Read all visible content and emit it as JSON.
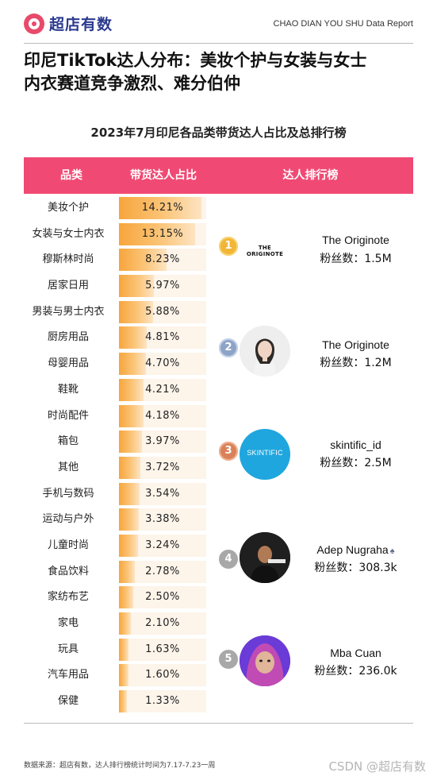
{
  "header": {
    "logo_text": "超店有数",
    "report_tag": "CHAO DIAN YOU SHU Data Report"
  },
  "title": {
    "line1": "印尼TikTok达人分布：美妆个护与女装与女士",
    "line2": "内衣赛道竞争激烈、难分伯仲"
  },
  "chart_title": "2023年7月印尼各品类带货达人占比及总排行榜",
  "table": {
    "headers": {
      "category": "品类",
      "share": "带货达人占比",
      "ranking": "达人排行榜"
    }
  },
  "chart_data": {
    "type": "bar",
    "title": "2023年7月印尼各品类带货达人占比及总排行榜",
    "categories": [
      "美妆个护",
      "女装与女士内衣",
      "穆斯林时尚",
      "居家日用",
      "男装与男士内衣",
      "厨房用品",
      "母婴用品",
      "鞋靴",
      "时尚配件",
      "箱包",
      "其他",
      "手机与数码",
      "运动与户外",
      "儿童时尚",
      "食品饮料",
      "家纺布艺",
      "家电",
      "玩具",
      "汽车用品",
      "保健"
    ],
    "values": [
      14.21,
      13.15,
      8.23,
      5.97,
      5.88,
      4.81,
      4.7,
      4.21,
      4.18,
      3.97,
      3.72,
      3.54,
      3.38,
      3.24,
      2.78,
      2.5,
      2.1,
      1.63,
      1.6,
      1.33
    ],
    "labels": [
      "14.21%",
      "13.15%",
      "8.23%",
      "5.97%",
      "5.88%",
      "4.81%",
      "4.70%",
      "4.21%",
      "4.18%",
      "3.97%",
      "3.72%",
      "3.54%",
      "3.38%",
      "3.24%",
      "2.78%",
      "2.50%",
      "2.10%",
      "1.63%",
      "1.60%",
      "1.33%"
    ],
    "xlabel": "",
    "ylabel": "",
    "xlim": [
      0,
      15
    ],
    "colors": {
      "bar_start": "#f7a53c",
      "bar_end": "#fde4c3",
      "header": "#f04a74"
    }
  },
  "creators": [
    {
      "rank": "1",
      "medal": "gold",
      "name": "The Originote",
      "fans": "粉丝数：1.5M",
      "avatar_text": "THE ORIGINOTE",
      "avatar": "brand-logo"
    },
    {
      "rank": "2",
      "medal": "silver",
      "name": "The Originote",
      "fans": "粉丝数：1.2M",
      "avatar": "woman-portrait"
    },
    {
      "rank": "3",
      "medal": "bronze",
      "name": "skintific_id",
      "fans": "粉丝数：2.5M",
      "avatar_text": "SKINTIFIC",
      "avatar": "skintific-logo"
    },
    {
      "rank": "4",
      "medal": "grey",
      "name": "Adep Nugraha",
      "name_suffix": "♠",
      "fans": "粉丝数：308.3k",
      "avatar": "man-portrait"
    },
    {
      "rank": "5",
      "medal": "grey",
      "name": "Mba Cuan",
      "fans": "粉丝数：236.0k",
      "avatar": "woman-hijab-portrait"
    }
  ],
  "footer": {
    "source": "数据来源：超店有数，达人排行榜统计时间为7.17-7.23一周",
    "watermark": "CSDN @超店有数"
  }
}
